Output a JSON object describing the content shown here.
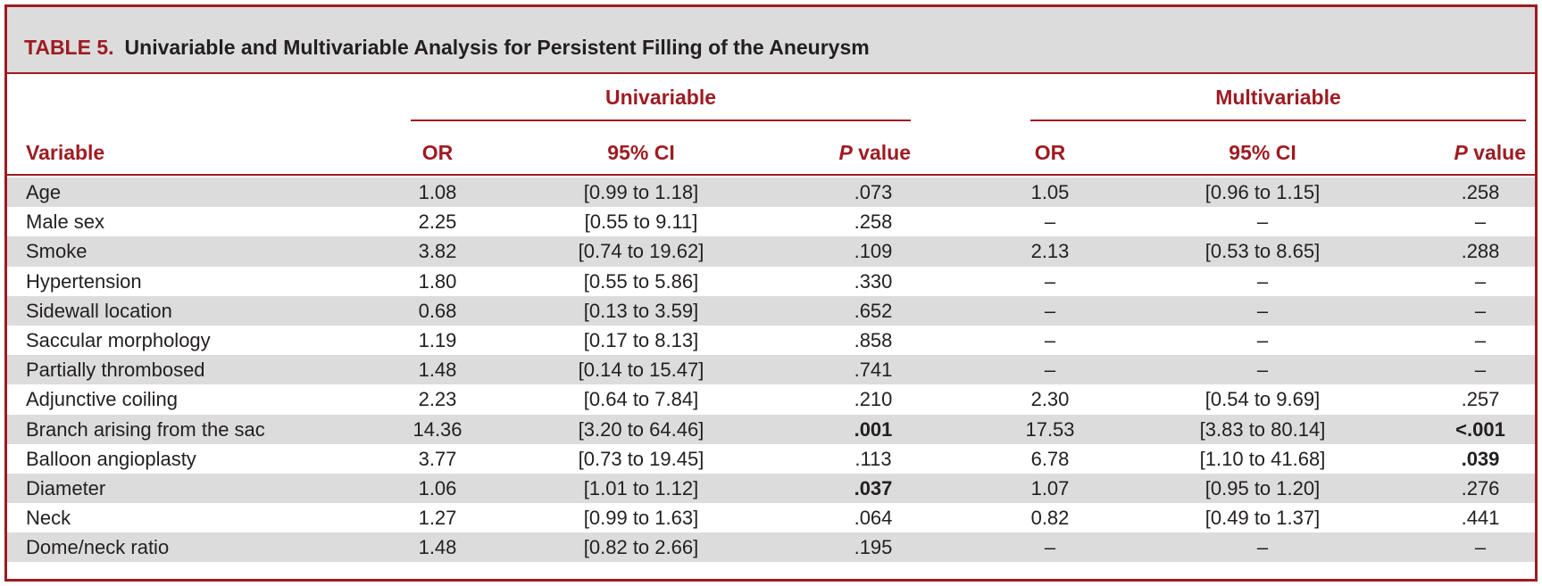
{
  "table": {
    "label": "TABLE 5.",
    "title": "Univariable and Multivariable Analysis for Persistent Filling of the Aneurysm",
    "groups": {
      "univariable": "Univariable",
      "multivariable": "Multivariable"
    },
    "columns": {
      "variable": "Variable",
      "or": "OR",
      "ci": "95% CI",
      "p_italic": "P",
      "p_rest": " value"
    },
    "rows": [
      {
        "variable": "Age",
        "u_or": "1.08",
        "u_ci": "[0.99 to 1.18]",
        "u_p": ".073",
        "u_p_bold": false,
        "m_or": "1.05",
        "m_ci": "[0.96 to 1.15]",
        "m_p": ".258",
        "m_p_bold": false
      },
      {
        "variable": "Male sex",
        "u_or": "2.25",
        "u_ci": "[0.55 to 9.11]",
        "u_p": ".258",
        "u_p_bold": false,
        "m_or": "–",
        "m_ci": "–",
        "m_p": "–",
        "m_p_bold": false
      },
      {
        "variable": "Smoke",
        "u_or": "3.82",
        "u_ci": "[0.74 to 19.62]",
        "u_p": ".109",
        "u_p_bold": false,
        "m_or": "2.13",
        "m_ci": "[0.53 to 8.65]",
        "m_p": ".288",
        "m_p_bold": false
      },
      {
        "variable": "Hypertension",
        "u_or": "1.80",
        "u_ci": "[0.55 to 5.86]",
        "u_p": ".330",
        "u_p_bold": false,
        "m_or": "–",
        "m_ci": "–",
        "m_p": "–",
        "m_p_bold": false
      },
      {
        "variable": "Sidewall location",
        "u_or": "0.68",
        "u_ci": "[0.13 to 3.59]",
        "u_p": ".652",
        "u_p_bold": false,
        "m_or": "–",
        "m_ci": "–",
        "m_p": "–",
        "m_p_bold": false
      },
      {
        "variable": "Saccular morphology",
        "u_or": "1.19",
        "u_ci": "[0.17 to 8.13]",
        "u_p": ".858",
        "u_p_bold": false,
        "m_or": "–",
        "m_ci": "–",
        "m_p": "–",
        "m_p_bold": false
      },
      {
        "variable": "Partially thrombosed",
        "u_or": "1.48",
        "u_ci": "[0.14 to 15.47]",
        "u_p": ".741",
        "u_p_bold": false,
        "m_or": "–",
        "m_ci": "–",
        "m_p": "–",
        "m_p_bold": false
      },
      {
        "variable": "Adjunctive coiling",
        "u_or": "2.23",
        "u_ci": "[0.64 to 7.84]",
        "u_p": ".210",
        "u_p_bold": false,
        "m_or": "2.30",
        "m_ci": "[0.54 to 9.69]",
        "m_p": ".257",
        "m_p_bold": false
      },
      {
        "variable": "Branch arising from the sac",
        "u_or": "14.36",
        "u_ci": "[3.20 to 64.46]",
        "u_p": ".001",
        "u_p_bold": true,
        "m_or": "17.53",
        "m_ci": "[3.83 to 80.14]",
        "m_p": "<.001",
        "m_p_bold": true
      },
      {
        "variable": "Balloon angioplasty",
        "u_or": "3.77",
        "u_ci": "[0.73 to 19.45]",
        "u_p": ".113",
        "u_p_bold": false,
        "m_or": "6.78",
        "m_ci": "[1.10 to 41.68]",
        "m_p": ".039",
        "m_p_bold": true
      },
      {
        "variable": "Diameter",
        "u_or": "1.06",
        "u_ci": "[1.01 to 1.12]",
        "u_p": ".037",
        "u_p_bold": true,
        "m_or": "1.07",
        "m_ci": "[0.95 to 1.20]",
        "m_p": ".276",
        "m_p_bold": false
      },
      {
        "variable": "Neck",
        "u_or": "1.27",
        "u_ci": "[0.99 to 1.63]",
        "u_p": ".064",
        "u_p_bold": false,
        "m_or": "0.82",
        "m_ci": "[0.49 to 1.37]",
        "m_p": ".441",
        "m_p_bold": false
      },
      {
        "variable": "Dome/neck ratio",
        "u_or": "1.48",
        "u_ci": "[0.82 to 2.66]",
        "u_p": ".195",
        "u_p_bold": false,
        "m_or": "–",
        "m_ci": "–",
        "m_p": "–",
        "m_p_bold": false
      }
    ]
  }
}
